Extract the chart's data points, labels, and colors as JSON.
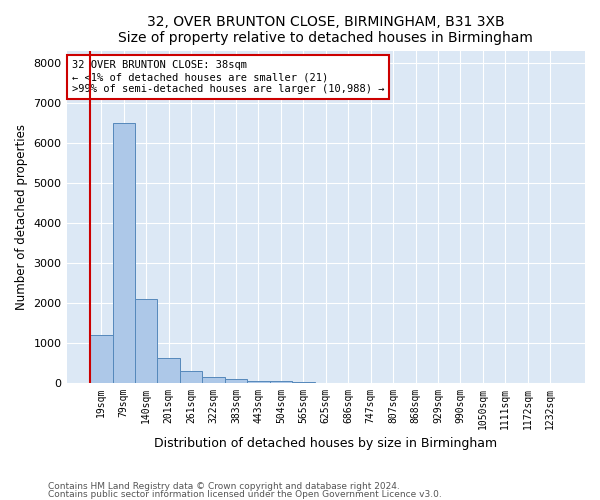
{
  "title1": "32, OVER BRUNTON CLOSE, BIRMINGHAM, B31 3XB",
  "title2": "Size of property relative to detached houses in Birmingham",
  "xlabel": "Distribution of detached houses by size in Birmingham",
  "ylabel": "Number of detached properties",
  "categories": [
    "19sqm",
    "79sqm",
    "140sqm",
    "201sqm",
    "261sqm",
    "322sqm",
    "383sqm",
    "443sqm",
    "504sqm",
    "565sqm",
    "625sqm",
    "686sqm",
    "747sqm",
    "807sqm",
    "868sqm",
    "929sqm",
    "990sqm",
    "1050sqm",
    "1111sqm",
    "1172sqm",
    "1232sqm"
  ],
  "values": [
    1200,
    6500,
    2100,
    620,
    300,
    150,
    100,
    50,
    30,
    10,
    0,
    0,
    0,
    0,
    0,
    0,
    0,
    0,
    0,
    0,
    0
  ],
  "bar_color": "#adc8e8",
  "bar_edge_color": "#5588bb",
  "annotation_box_edgecolor": "#cc0000",
  "annotation_lines": [
    "32 OVER BRUNTON CLOSE: 38sqm",
    "← <1% of detached houses are smaller (21)",
    ">99% of semi-detached houses are larger (10,988) →"
  ],
  "property_line_color": "#cc0000",
  "plot_bg_color": "#dce8f5",
  "footer1": "Contains HM Land Registry data © Crown copyright and database right 2024.",
  "footer2": "Contains public sector information licensed under the Open Government Licence v3.0.",
  "ylim": [
    0,
    8300
  ],
  "yticks": [
    0,
    1000,
    2000,
    3000,
    4000,
    5000,
    6000,
    7000,
    8000
  ],
  "figsize": [
    6.0,
    5.0
  ],
  "dpi": 100
}
